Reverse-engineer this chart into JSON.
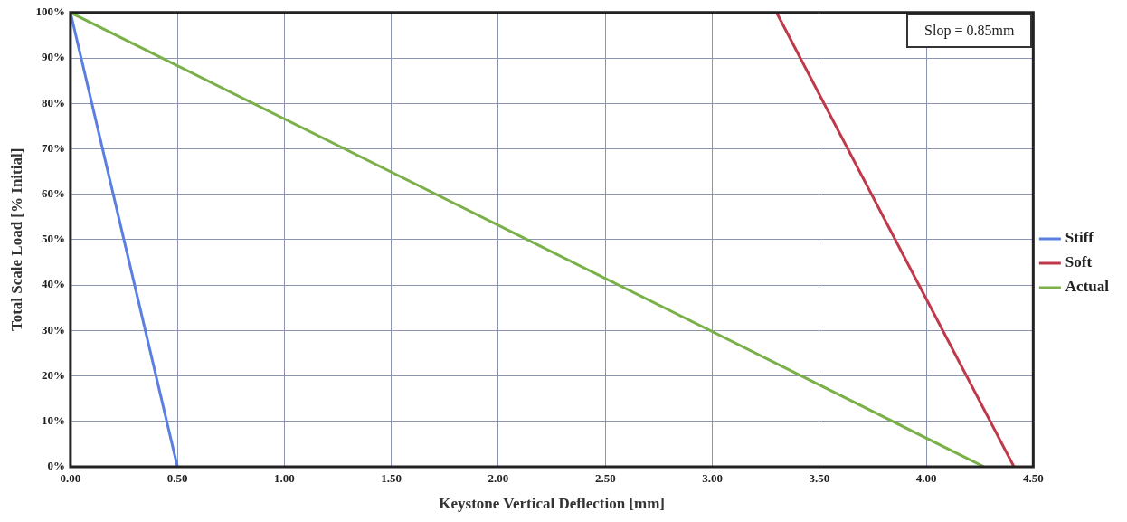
{
  "chart_data": {
    "type": "line",
    "xlabel": "Keystone Vertical Deflection [mm]",
    "ylabel": "Total Scale Load [% Initial]",
    "series": [
      {
        "name": "Stiff",
        "color": "#5b7fe0",
        "x": [
          0,
          0.5
        ],
        "values": [
          100,
          0
        ]
      },
      {
        "name": "Soft",
        "color": "#c0394b",
        "x": [
          3.3,
          4.41
        ],
        "values": [
          100,
          0
        ]
      },
      {
        "name": "Actual",
        "color": "#7ab04a",
        "x": [
          0,
          4.27
        ],
        "values": [
          100,
          0
        ]
      }
    ],
    "xlim": [
      0,
      4.5
    ],
    "xticks": [
      {
        "value": 0,
        "label": "0.00"
      },
      {
        "value": 0.5,
        "label": "0.50"
      },
      {
        "value": 1,
        "label": "1.00"
      },
      {
        "value": 1.5,
        "label": "1.50"
      },
      {
        "value": 2,
        "label": "2.00"
      },
      {
        "value": 2.5,
        "label": "2.50"
      },
      {
        "value": 3,
        "label": "3.00"
      },
      {
        "value": 3.5,
        "label": "3.50"
      },
      {
        "value": 4,
        "label": "4.00"
      },
      {
        "value": 4.5,
        "label": "4.50"
      }
    ],
    "ylim": [
      0,
      100
    ],
    "yticks": [
      {
        "value": 0,
        "label": "0%"
      },
      {
        "value": 10,
        "label": "10%"
      },
      {
        "value": 20,
        "label": "20%"
      },
      {
        "value": 30,
        "label": "30%"
      },
      {
        "value": 40,
        "label": "40%"
      },
      {
        "value": 50,
        "label": "50%"
      },
      {
        "value": 60,
        "label": "60%"
      },
      {
        "value": 70,
        "label": "70%"
      },
      {
        "value": 80,
        "label": "80%"
      },
      {
        "value": 90,
        "label": "90%"
      },
      {
        "value": 100,
        "label": "100%"
      }
    ],
    "grid": true,
    "legend": "right",
    "marker": "none",
    "line_style": "solid",
    "annotations": [
      "Slop = 0.85mm"
    ]
  }
}
